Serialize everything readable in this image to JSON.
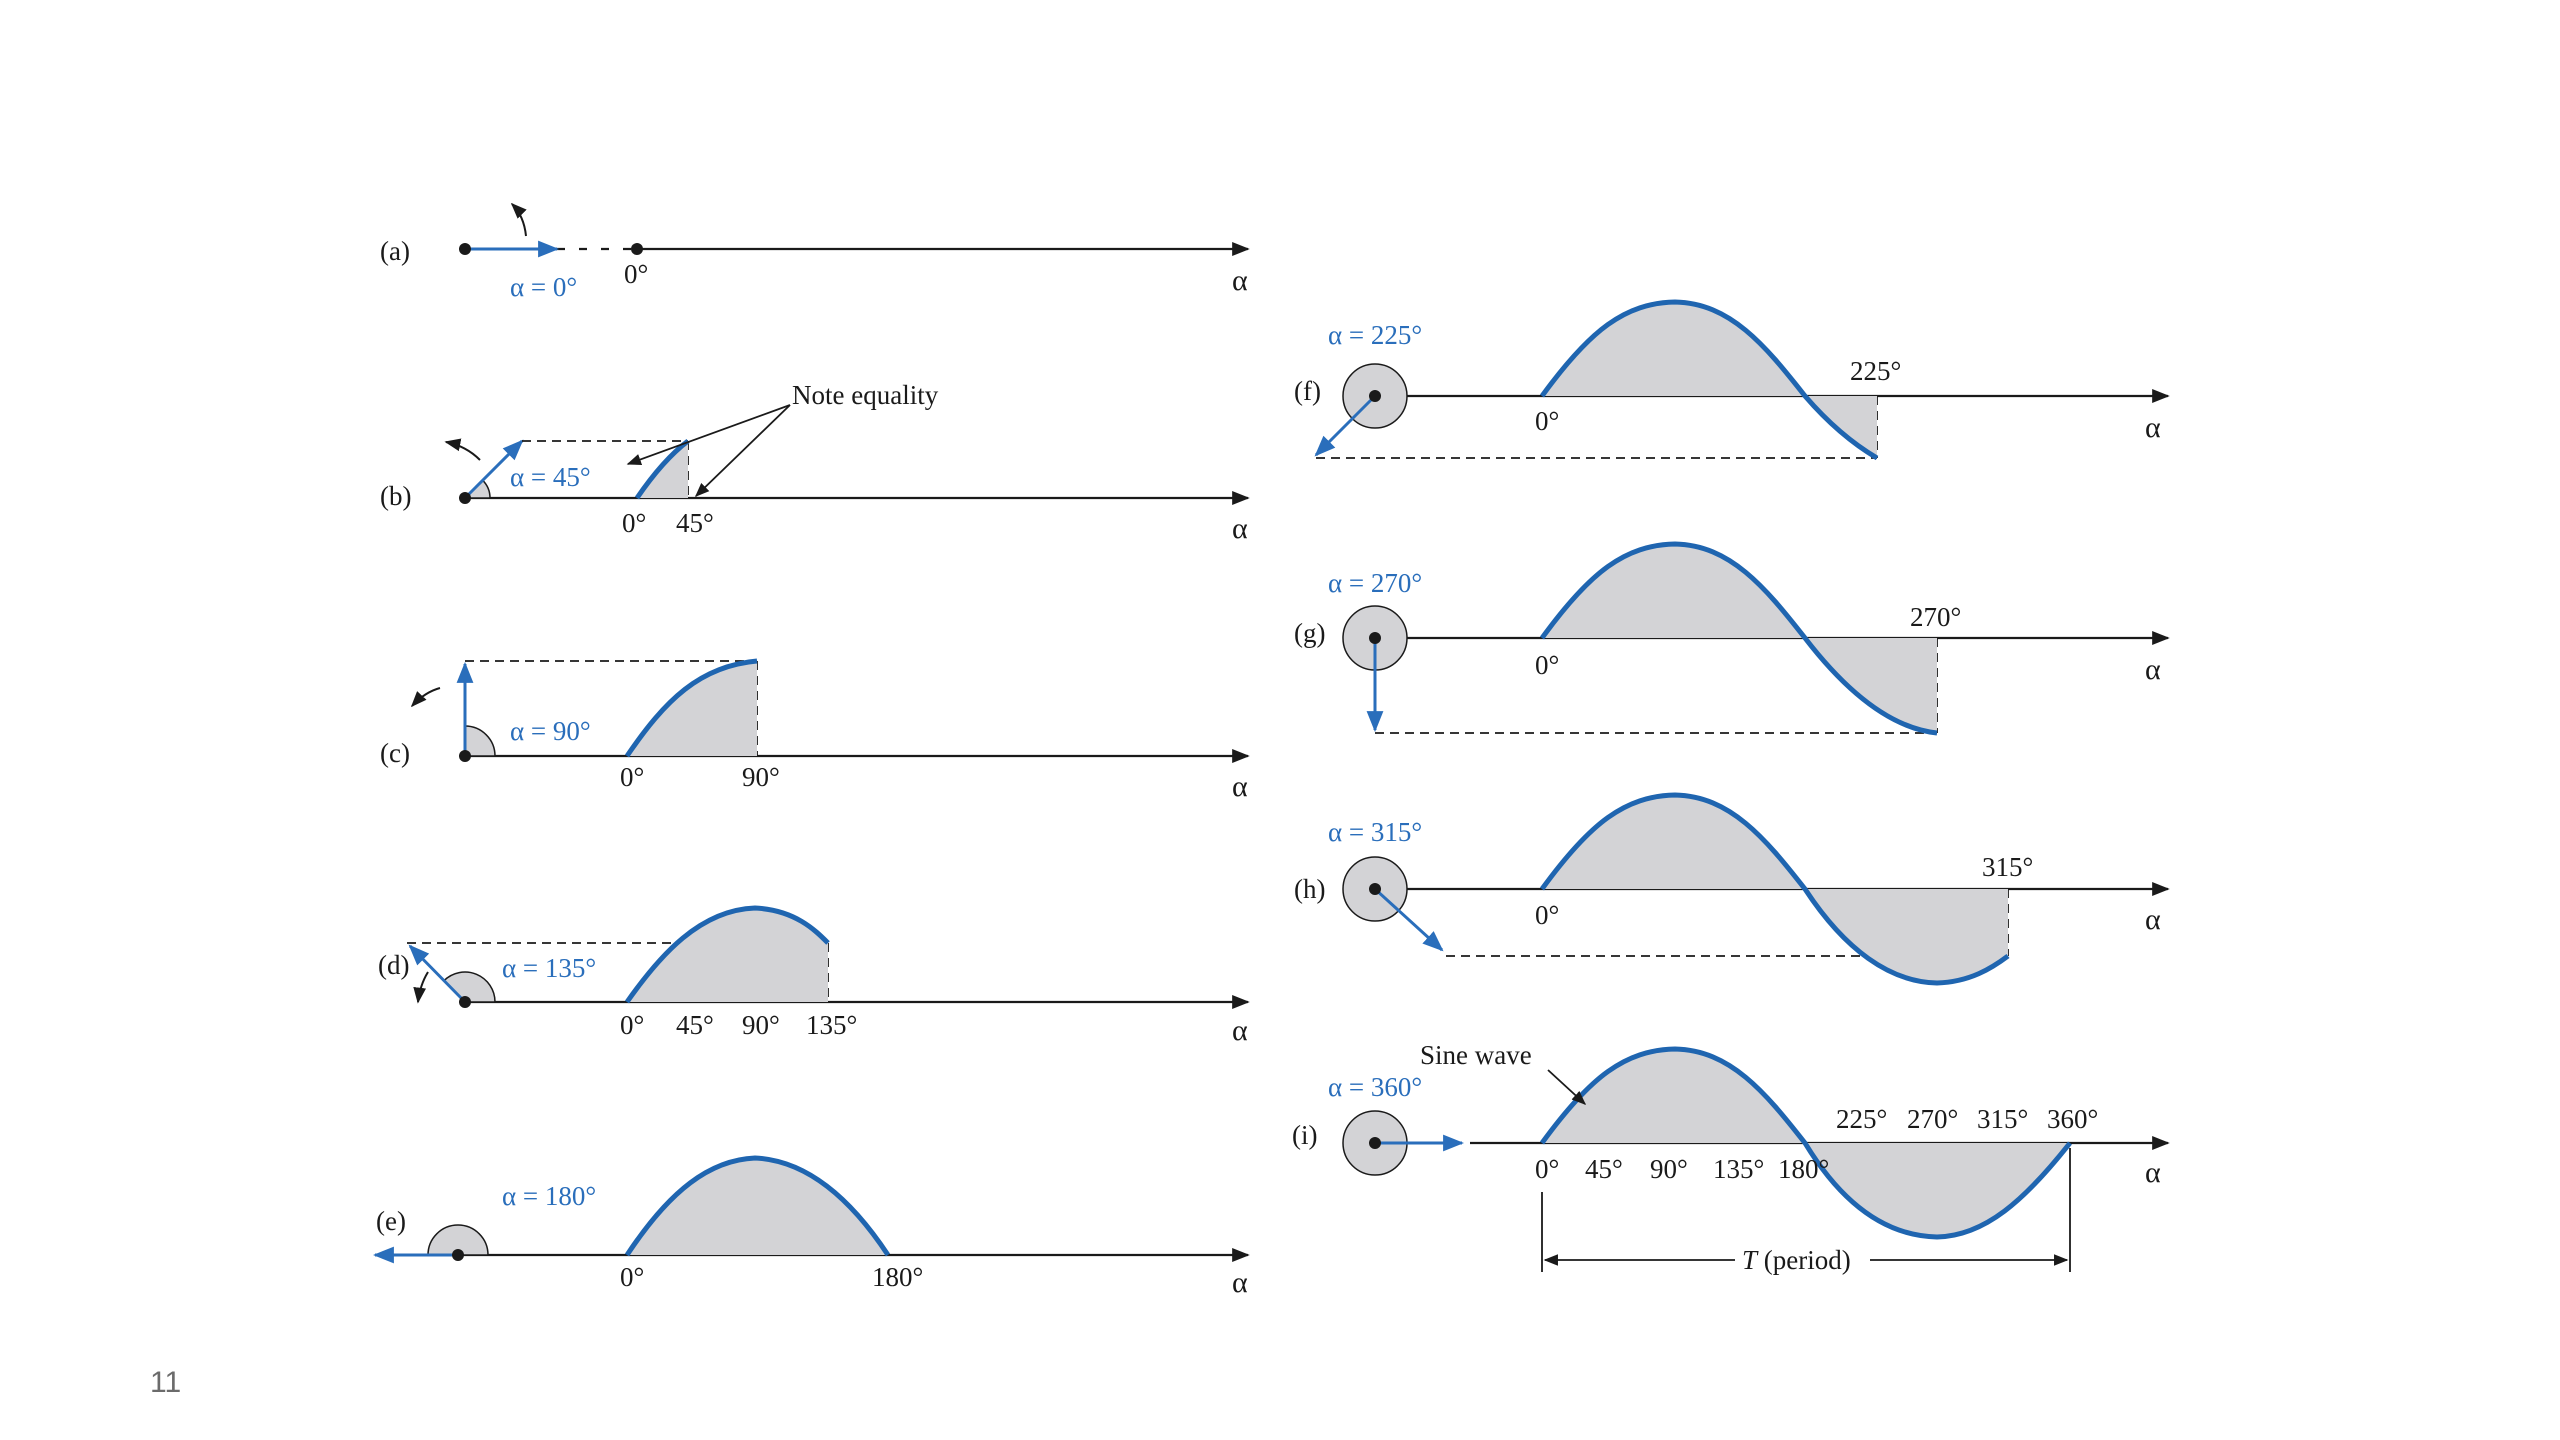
{
  "slide": {
    "page_number": "11"
  },
  "colors": {
    "wave": "#1f65b0",
    "vector": "#2a6ebb",
    "fill": "#d3d3d6",
    "ink": "#1a1a1a"
  },
  "axis_symbol": "α",
  "degree_labels": {
    "d0": "0°",
    "d45": "45°",
    "d90": "90°",
    "d135": "135°",
    "d180": "180°",
    "d225": "225°",
    "d270": "270°",
    "d315": "315°",
    "d360": "360°"
  },
  "panels": [
    {
      "id": "a",
      "label": "(a)",
      "angle_label": "α = 0°",
      "angle": 0
    },
    {
      "id": "b",
      "label": "(b)",
      "angle_label": "α = 45°",
      "angle": 45
    },
    {
      "id": "c",
      "label": "(c)",
      "angle_label": "α = 90°",
      "angle": 90
    },
    {
      "id": "d",
      "label": "(d)",
      "angle_label": "α = 135°",
      "angle": 135
    },
    {
      "id": "e",
      "label": "(e)",
      "angle_label": "α = 180°",
      "angle": 180
    },
    {
      "id": "f",
      "label": "(f)",
      "angle_label": "α = 225°",
      "angle": 225
    },
    {
      "id": "g",
      "label": "(g)",
      "angle_label": "α = 270°",
      "angle": 270
    },
    {
      "id": "h",
      "label": "(h)",
      "angle_label": "α = 315°",
      "angle": 315
    },
    {
      "id": "i",
      "label": "(i)",
      "angle_label": "α = 360°",
      "angle": 360
    }
  ],
  "annotations": {
    "note_equality": "Note equality",
    "sine_wave": "Sine wave",
    "period_T": "T",
    "period_text": " (period)"
  }
}
